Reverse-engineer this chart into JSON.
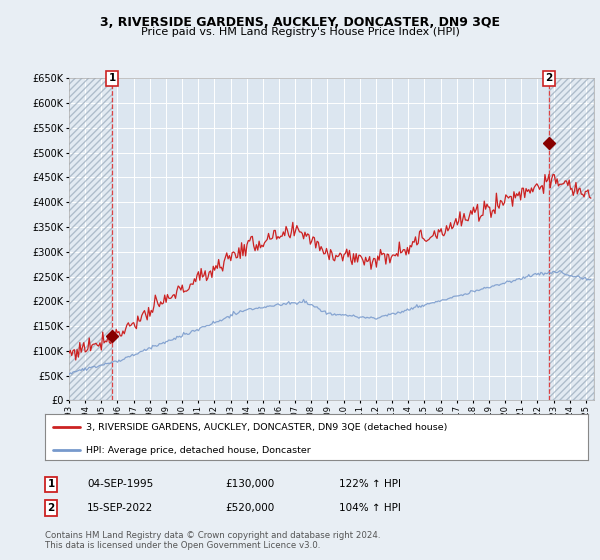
{
  "title_line1": "3, RIVERSIDE GARDENS, AUCKLEY, DONCASTER, DN9 3QE",
  "title_line2": "Price paid vs. HM Land Registry's House Price Index (HPI)",
  "bg_color": "#e8eef4",
  "plot_bg_color": "#dce6f0",
  "grid_color": "#ffffff",
  "red_line_color": "#cc2222",
  "blue_line_color": "#7799cc",
  "marker_color": "#880000",
  "dashed_line_color": "#dd3333",
  "ylim": [
    0,
    650000
  ],
  "yticks": [
    0,
    50000,
    100000,
    150000,
    200000,
    250000,
    300000,
    350000,
    400000,
    450000,
    500000,
    550000,
    600000,
    650000
  ],
  "point1_x": 1995.67,
  "point1_y": 130000,
  "point1_label": "1",
  "point2_x": 2022.71,
  "point2_y": 520000,
  "point2_label": "2",
  "xmin": 1993.0,
  "xmax": 2025.5,
  "legend_red": "3, RIVERSIDE GARDENS, AUCKLEY, DONCASTER, DN9 3QE (detached house)",
  "legend_blue": "HPI: Average price, detached house, Doncaster",
  "table_row1": [
    "1",
    "04-SEP-1995",
    "£130,000",
    "122% ↑ HPI"
  ],
  "table_row2": [
    "2",
    "15-SEP-2022",
    "£520,000",
    "104% ↑ HPI"
  ],
  "footer": "Contains HM Land Registry data © Crown copyright and database right 2024.\nThis data is licensed under the Open Government Licence v3.0."
}
